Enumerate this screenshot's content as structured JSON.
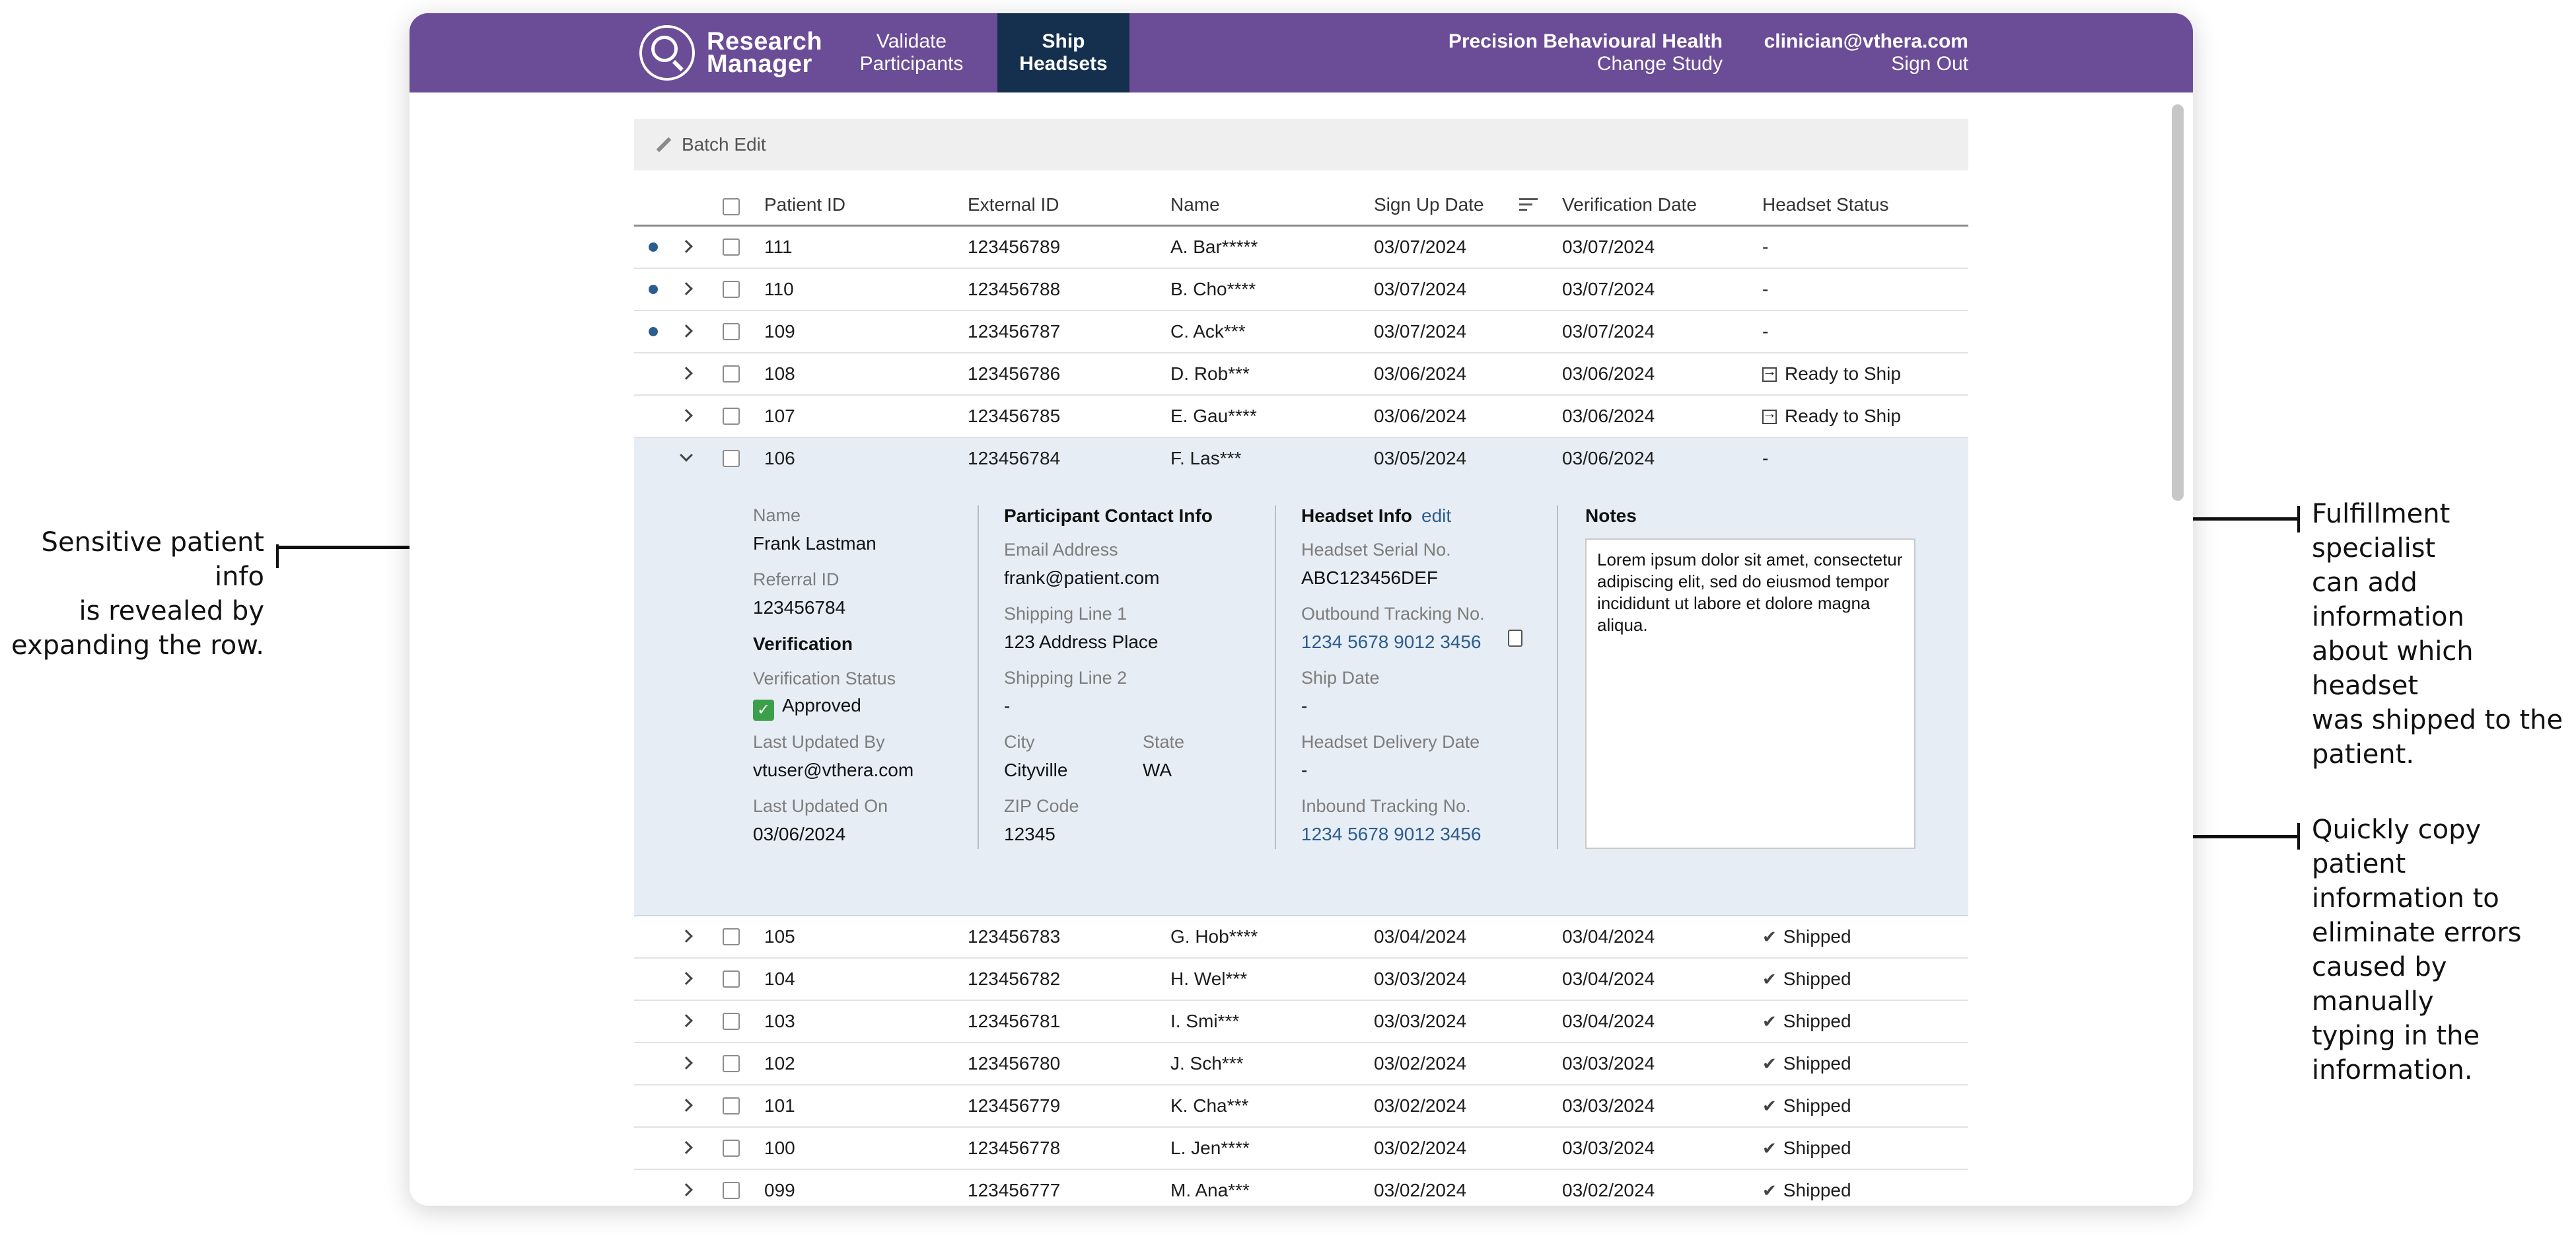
{
  "header": {
    "brand_line1": "Research",
    "brand_line2": "Manager",
    "tabs": [
      {
        "line1": "Validate",
        "line2": "Participants"
      },
      {
        "line1": "Ship",
        "line2": "Headsets"
      }
    ],
    "study_name": "Precision Behavioural Health",
    "change_study": "Change Study",
    "user_email": "clinician@vthera.com",
    "sign_out": "Sign Out"
  },
  "toolbar": {
    "batch_edit": "Batch Edit"
  },
  "table": {
    "columns": [
      "Patient ID",
      "External ID",
      "Name",
      "Sign Up Date",
      "Verification Date",
      "Headset Status"
    ],
    "rows_top": [
      {
        "id": "111",
        "ext": "123456789",
        "name": "A. Bar*****",
        "signup": "03/07/2024",
        "verif": "03/07/2024",
        "status": "-",
        "new": true
      },
      {
        "id": "110",
        "ext": "123456788",
        "name": "B. Cho****",
        "signup": "03/07/2024",
        "verif": "03/07/2024",
        "status": "-",
        "new": true
      },
      {
        "id": "109",
        "ext": "123456787",
        "name": "C. Ack***",
        "signup": "03/07/2024",
        "verif": "03/07/2024",
        "status": "-",
        "new": true
      },
      {
        "id": "108",
        "ext": "123456786",
        "name": "D. Rob***",
        "signup": "03/06/2024",
        "verif": "03/06/2024",
        "status": "Ready to Ship",
        "new": false
      },
      {
        "id": "107",
        "ext": "123456785",
        "name": "E. Gau****",
        "signup": "03/06/2024",
        "verif": "03/06/2024",
        "status": "Ready to Ship",
        "new": false
      }
    ],
    "expanded_row": {
      "id": "106",
      "ext": "123456784",
      "name": "F. Las***",
      "signup": "03/05/2024",
      "verif": "03/06/2024",
      "status": "-"
    },
    "rows_bottom": [
      {
        "id": "105",
        "ext": "123456783",
        "name": "G. Hob****",
        "signup": "03/04/2024",
        "verif": "03/04/2024",
        "status": "Shipped"
      },
      {
        "id": "104",
        "ext": "123456782",
        "name": "H. Wel***",
        "signup": "03/03/2024",
        "verif": "03/04/2024",
        "status": "Shipped"
      },
      {
        "id": "103",
        "ext": "123456781",
        "name": "I. Smi***",
        "signup": "03/03/2024",
        "verif": "03/04/2024",
        "status": "Shipped"
      },
      {
        "id": "102",
        "ext": "123456780",
        "name": "J. Sch***",
        "signup": "03/02/2024",
        "verif": "03/03/2024",
        "status": "Shipped"
      },
      {
        "id": "101",
        "ext": "123456779",
        "name": "K. Cha***",
        "signup": "03/02/2024",
        "verif": "03/03/2024",
        "status": "Shipped"
      },
      {
        "id": "100",
        "ext": "123456778",
        "name": "L. Jen****",
        "signup": "03/02/2024",
        "verif": "03/03/2024",
        "status": "Shipped"
      },
      {
        "id": "099",
        "ext": "123456777",
        "name": "M. Ana***",
        "signup": "03/02/2024",
        "verif": "03/02/2024",
        "status": "Shipped"
      }
    ]
  },
  "detail": {
    "name_label": "Name",
    "name_value": "Frank Lastman",
    "referral_label": "Referral ID",
    "referral_value": "123456784",
    "verification_head": "Verification",
    "verif_status_label": "Verification Status",
    "verif_status_value": "Approved",
    "last_updated_by_label": "Last Updated By",
    "last_updated_by_value": "vtuser@vthera.com",
    "last_updated_on_label": "Last Updated On",
    "last_updated_on_value": "03/06/2024",
    "contact_head": "Participant Contact Info",
    "email_label": "Email Address",
    "email_value": "frank@patient.com",
    "ship1_label": "Shipping Line 1",
    "ship1_value": "123 Address Place",
    "ship2_label": "Shipping Line 2",
    "ship2_value": "-",
    "city_label": "City",
    "city_value": "Cityville",
    "state_label": "State",
    "state_value": "WA",
    "zip_label": "ZIP Code",
    "zip_value": "12345",
    "headset_head": "Headset Info",
    "edit_link": "edit",
    "serial_label": "Headset Serial No.",
    "serial_value": "ABC123456DEF",
    "outbound_label": "Outbound Tracking No.",
    "outbound_value": "1234 5678 9012 3456",
    "ship_date_label": "Ship Date",
    "ship_date_value": "-",
    "delivery_label": "Headset Delivery Date",
    "delivery_value": "-",
    "inbound_label": "Inbound Tracking No.",
    "inbound_value": "1234 5678 9012 3456",
    "notes_head": "Notes",
    "notes_text": "Lorem ipsum dolor sit amet, consectetur adipiscing elit, sed do eiusmod tempor incididunt ut labore et dolore magna aliqua."
  },
  "annotations": {
    "left": [
      "Sensitive patient info",
      "is revealed by",
      "expanding the row."
    ],
    "right_top": [
      "Fulfillment specialist",
      "can add information",
      "about which headset",
      "was shipped to the",
      "patient."
    ],
    "right_bottom": [
      "Quickly copy patient",
      "information to",
      "eliminate errors",
      "caused by manually",
      "typing in the",
      "information."
    ]
  },
  "colors": {
    "topbar": "#6b4c96",
    "active_tab": "#15304f",
    "link": "#2b5d8e",
    "expanded_bg": "#e7edf4"
  }
}
